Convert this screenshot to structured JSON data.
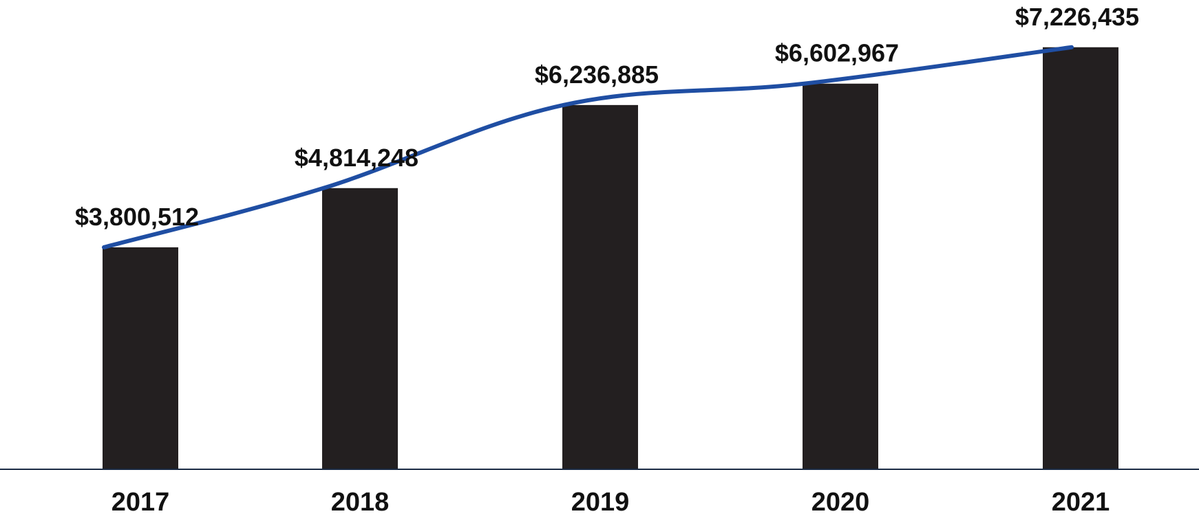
{
  "chart_data": {
    "type": "bar",
    "categories": [
      "2017",
      "2018",
      "2019",
      "2020",
      "2021"
    ],
    "values": [
      3800512,
      4814248,
      6236885,
      6602967,
      7226435
    ],
    "data_labels": [
      "$3,800,512",
      "$4,814,248",
      "$6,236,885",
      "$6,602,967",
      "$7,226,435"
    ],
    "trend_line": {
      "values": [
        3800512,
        4814248,
        6236885,
        6602967,
        7226435
      ],
      "smooth": true
    },
    "ylim": [
      0,
      7800000
    ],
    "grid": false,
    "legend": "none",
    "colors": {
      "bar": "#231f20",
      "line": "#1f4ea3",
      "axis": "#1a2a44",
      "text": "#111111"
    }
  }
}
